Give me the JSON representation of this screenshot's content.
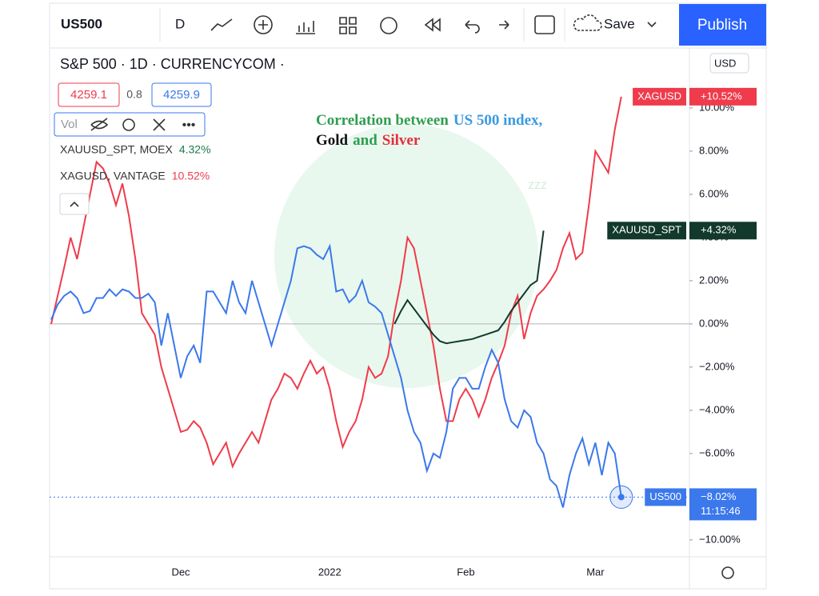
{
  "toolbar": {
    "symbol": "US500",
    "interval": "D",
    "save": "Save",
    "publish": "Publish"
  },
  "legend_panel": {
    "header": "S&P 500 · 1D · CURRENCYCOM ·",
    "bid": "4259.1",
    "spread": "0.8",
    "ask": "4259.9",
    "vol": "Vol",
    "currency": "USD"
  },
  "chart_data": {
    "type": "line",
    "title": [
      {
        "text": "Correlation between",
        "color": "#2e9e4f"
      },
      {
        "text": "US 500 index,",
        "color": "#3b9ae1"
      },
      {
        "text": "Gold",
        "color": "#111111"
      },
      {
        "text": "and",
        "color": "#2e9e4f"
      },
      {
        "text": "Silver",
        "color": "#e0303c"
      }
    ],
    "watermark": "zzz",
    "categories": [
      null,
      null,
      null,
      null,
      null,
      null,
      null,
      null,
      null,
      null,
      null,
      null,
      null,
      null,
      null,
      null,
      null,
      null,
      null,
      null,
      "Dec",
      null,
      null,
      null,
      null,
      null,
      null,
      null,
      null,
      null,
      null,
      null,
      null,
      null,
      null,
      null,
      null,
      null,
      null,
      null,
      null,
      null,
      null,
      "2022",
      null,
      null,
      null,
      null,
      null,
      null,
      null,
      null,
      null,
      null,
      null,
      null,
      null,
      null,
      null,
      null,
      null,
      null,
      null,
      null,
      "Feb",
      null,
      null,
      null,
      null,
      null,
      null,
      null,
      null,
      null,
      null,
      null,
      null,
      null,
      null,
      null,
      null,
      null,
      null,
      null,
      "Mar",
      null,
      null,
      null,
      null
    ],
    "ylim": [
      -10.56,
      12.7
    ],
    "yticks": [
      {
        "value": -10,
        "label": "−10.00%"
      },
      {
        "value": -8,
        "label": "−8.00%"
      },
      {
        "value": -6,
        "label": "−6.00%"
      },
      {
        "value": -4,
        "label": "−4.00%"
      },
      {
        "value": -2,
        "label": "−2.00%"
      },
      {
        "value": 0,
        "label": "0.00%"
      },
      {
        "value": 2,
        "label": "2.00%"
      },
      {
        "value": 4,
        "label": "4.00%"
      },
      {
        "value": 6,
        "label": "6.00%"
      },
      {
        "value": 8,
        "label": "8.00%"
      },
      {
        "value": 10,
        "label": "10.00%"
      }
    ],
    "grid": false,
    "series": [
      {
        "name": "XAGUSD",
        "legend_label": "XAGUSD, VANTAGE",
        "legend_value": "10.52%",
        "last_value_label": "+10.52%",
        "color": "#ef3b4b",
        "values": [
          0,
          1.3,
          2.6,
          4,
          3,
          4.5,
          6,
          7.5,
          7.2,
          6.5,
          5.5,
          6.5,
          5,
          3,
          0.5,
          0,
          -0.5,
          -2,
          -3,
          -4,
          -5,
          -4.9,
          -4.5,
          -4.8,
          -5.5,
          -6.5,
          -6,
          -5.5,
          -6.6,
          -6,
          -5.5,
          -5,
          -5.5,
          -4.5,
          -3.5,
          -3,
          -2.3,
          -2.5,
          -3,
          -2.3,
          -1.7,
          -2.3,
          -2,
          -3,
          -4.5,
          -5.7,
          -5,
          -4.5,
          -3.5,
          -2,
          -2.5,
          -2.3,
          -1.5,
          0.5,
          2,
          4,
          3.5,
          2,
          0.5,
          -1,
          -3,
          -4.5,
          -4.5,
          -3.5,
          -3,
          -3.5,
          -4.3,
          -3.5,
          -2.5,
          -1.8,
          -1,
          0.5,
          1.3,
          -0.7,
          0.5,
          1.3,
          1.6,
          2,
          2.5,
          3.5,
          4.2,
          3,
          3.3,
          5.5,
          8,
          7.5,
          7,
          9,
          10.52
        ]
      },
      {
        "name": "XAUUSD_SPT",
        "legend_label": "XAUUSD_SPT, MOEX",
        "legend_value": "4.32%",
        "last_value_label": "+4.32%",
        "color": "#12392c",
        "values": [
          null,
          null,
          null,
          null,
          null,
          null,
          null,
          null,
          null,
          null,
          null,
          null,
          null,
          null,
          null,
          null,
          null,
          null,
          null,
          null,
          null,
          null,
          null,
          null,
          null,
          null,
          null,
          null,
          null,
          null,
          null,
          null,
          null,
          null,
          null,
          null,
          null,
          null,
          null,
          null,
          null,
          null,
          null,
          null,
          null,
          null,
          null,
          null,
          null,
          null,
          null,
          null,
          null,
          0,
          0.6,
          1.1,
          0.7,
          0.3,
          -0.1,
          -0.5,
          -0.8,
          -0.9,
          -0.85,
          -0.8,
          -0.75,
          -0.7,
          -0.6,
          -0.5,
          -0.4,
          -0.3,
          0.1,
          0.6,
          1,
          1.4,
          1.8,
          2,
          4.32,
          null,
          null,
          null,
          null,
          null,
          null,
          null,
          null,
          null,
          null,
          null,
          null
        ]
      },
      {
        "name": "US500",
        "last_value_label": "−8.02%",
        "time": "11:15:46",
        "color": "#3b78ec",
        "values": [
          0.2,
          0.9,
          1.3,
          1.5,
          1.2,
          0.5,
          0.6,
          1.2,
          1.2,
          1.6,
          1.3,
          1.6,
          1.5,
          1.2,
          1.2,
          1.4,
          1,
          -1,
          0.5,
          -1,
          -2.5,
          -1.5,
          -1,
          -1.8,
          1.5,
          1.5,
          1,
          0.5,
          2,
          1,
          0.5,
          2,
          1,
          0,
          -1,
          0,
          1,
          2,
          3.5,
          3.6,
          3.5,
          3.2,
          3,
          3.6,
          1.5,
          1.6,
          1,
          1.3,
          2,
          1,
          0.8,
          0.5,
          -0.5,
          -1.5,
          -2.5,
          -4,
          -5,
          -5.5,
          -6.8,
          -6,
          -6.2,
          -5,
          -3,
          -2.5,
          -2.5,
          -3,
          -3,
          -2,
          -1.2,
          -1.8,
          -3.5,
          -4.5,
          -4.8,
          -4,
          -4.3,
          -5.5,
          -6,
          -7.2,
          -7.5,
          -8.5,
          -7,
          -6,
          -5.3,
          -6.5,
          -5.5,
          -7,
          -5.5,
          -6,
          -8.02
        ]
      }
    ]
  }
}
